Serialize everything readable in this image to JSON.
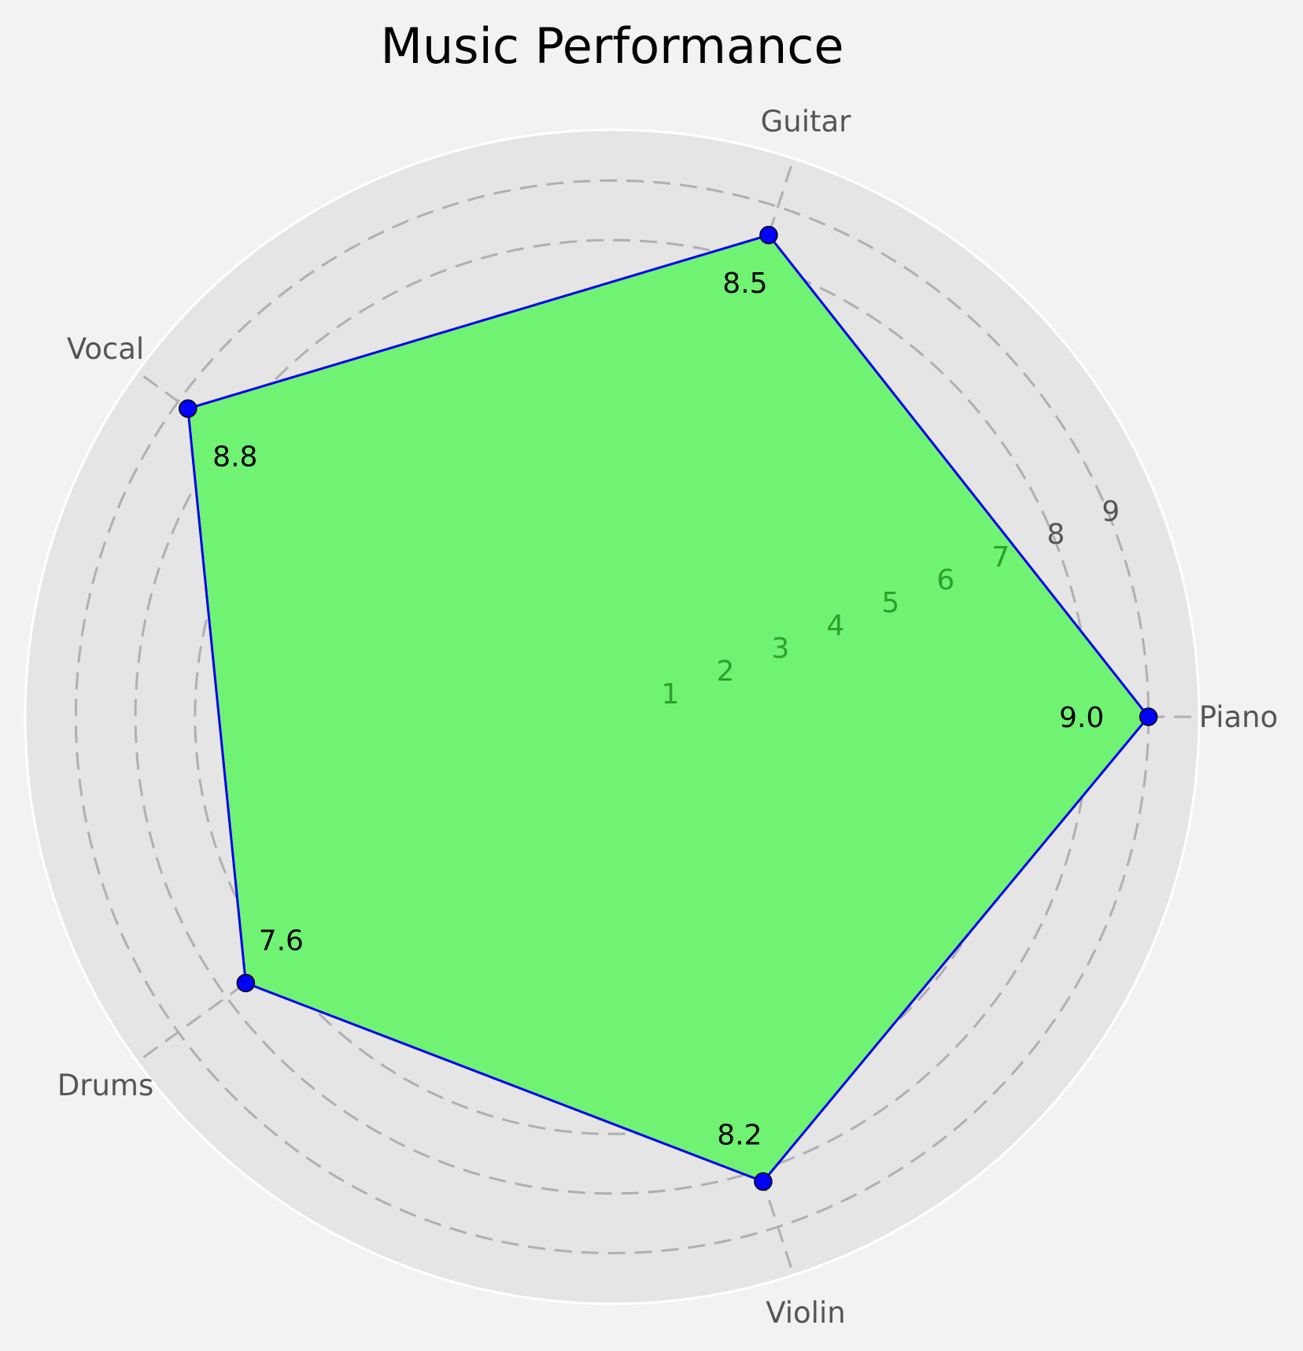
{
  "chart_data": {
    "type": "radar",
    "title": "Music Performance",
    "categories": [
      "Piano",
      "Guitar",
      "Vocal",
      "Drums",
      "Violin"
    ],
    "series": [
      {
        "values": [
          9.0,
          8.5,
          8.8,
          7.6,
          8.2
        ]
      }
    ],
    "value_labels": [
      "9.0",
      "8.5",
      "8.8",
      "7.6",
      "8.2"
    ],
    "radial_ticks": [
      "1",
      "2",
      "3",
      "4",
      "5",
      "6",
      "7",
      "8",
      "9"
    ],
    "rlim": [
      0,
      9
    ],
    "grid": true,
    "colors": {
      "fill": "#70f272",
      "line": "#0000ee",
      "marker": "#0000ff",
      "background": "#e5e5e5",
      "figure": "#f2f2f2",
      "grid": "#b0b0b0"
    }
  }
}
